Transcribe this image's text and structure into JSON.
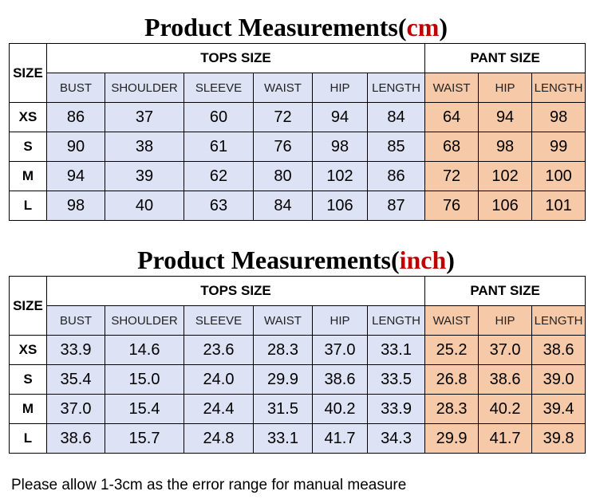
{
  "tables": [
    {
      "title_main": "Product Measurements",
      "title_open": "(",
      "title_unit": "cm",
      "title_close": ")",
      "size_label": "SIZE",
      "tops_label": "TOPS SIZE",
      "pant_label": "PANT SIZE",
      "tops_columns": [
        "BUST",
        "SHOULDER",
        "SLEEVE",
        "WAIST",
        "HIP",
        "LENGTH"
      ],
      "pant_columns": [
        "WAIST",
        "HIP",
        "LENGTH"
      ],
      "rows": [
        {
          "size": "XS",
          "tops": [
            "86",
            "37",
            "60",
            "72",
            "94",
            "84"
          ],
          "pant": [
            "64",
            "94",
            "98"
          ]
        },
        {
          "size": "S",
          "tops": [
            "90",
            "38",
            "61",
            "76",
            "98",
            "85"
          ],
          "pant": [
            "68",
            "98",
            "99"
          ]
        },
        {
          "size": "M",
          "tops": [
            "94",
            "39",
            "62",
            "80",
            "102",
            "86"
          ],
          "pant": [
            "72",
            "102",
            "100"
          ]
        },
        {
          "size": "L",
          "tops": [
            "98",
            "40",
            "63",
            "84",
            "106",
            "87"
          ],
          "pant": [
            "76",
            "106",
            "101"
          ]
        }
      ]
    },
    {
      "title_main": "Product Measurements",
      "title_open": "(",
      "title_unit": "inch",
      "title_close": ")",
      "size_label": "SIZE",
      "tops_label": "TOPS SIZE",
      "pant_label": "PANT SIZE",
      "tops_columns": [
        "BUST",
        "SHOULDER",
        "SLEEVE",
        "WAIST",
        "HIP",
        "LENGTH"
      ],
      "pant_columns": [
        "WAIST",
        "HIP",
        "LENGTH"
      ],
      "rows": [
        {
          "size": "XS",
          "tops": [
            "33.9",
            "14.6",
            "23.6",
            "28.3",
            "37.0",
            "33.1"
          ],
          "pant": [
            "25.2",
            "37.0",
            "38.6"
          ]
        },
        {
          "size": "S",
          "tops": [
            "35.4",
            "15.0",
            "24.0",
            "29.9",
            "38.6",
            "33.5"
          ],
          "pant": [
            "26.8",
            "38.6",
            "39.0"
          ]
        },
        {
          "size": "M",
          "tops": [
            "37.0",
            "15.4",
            "24.4",
            "31.5",
            "40.2",
            "33.9"
          ],
          "pant": [
            "28.3",
            "40.2",
            "39.4"
          ]
        },
        {
          "size": "L",
          "tops": [
            "38.6",
            "15.7",
            "24.8",
            "33.1",
            "41.7",
            "34.3"
          ],
          "pant": [
            "29.9",
            "41.7",
            "39.8"
          ]
        }
      ]
    }
  ],
  "note": "Please allow 1-3cm as the error range for manual measure",
  "colors": {
    "tops_fill": "#dde2f4",
    "pant_fill": "#f6c9a8",
    "unit_text": "#c00000"
  }
}
